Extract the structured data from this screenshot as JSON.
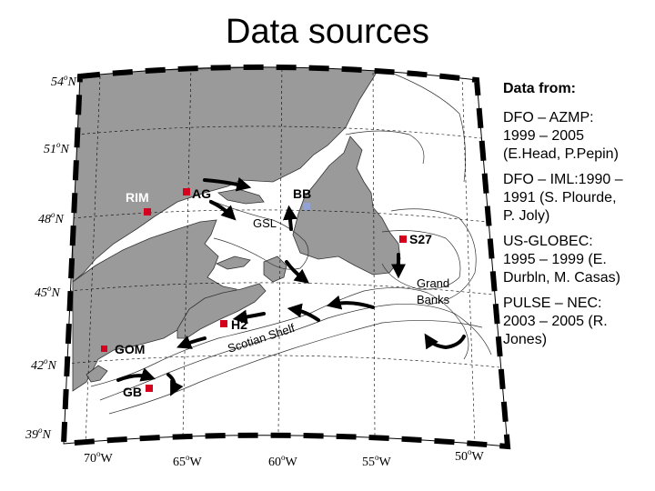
{
  "title": "Data sources",
  "colors": {
    "land": "#9a9a9a",
    "ocean": "#ffffff",
    "station": "#d4001e",
    "station_bb": "#8fa3d6",
    "frame": "#000000"
  },
  "map": {
    "lat_labels": [
      {
        "deg": "54",
        "suffix": "N"
      },
      {
        "deg": "51",
        "suffix": "N"
      },
      {
        "deg": "48",
        "suffix": "N"
      },
      {
        "deg": "45",
        "suffix": "N"
      },
      {
        "deg": "42",
        "suffix": "N"
      },
      {
        "deg": "39",
        "suffix": "N"
      }
    ],
    "lon_labels": [
      {
        "deg": "70",
        "suffix": "W"
      },
      {
        "deg": "65",
        "suffix": "W"
      },
      {
        "deg": "60",
        "suffix": "W"
      },
      {
        "deg": "55",
        "suffix": "W"
      },
      {
        "deg": "50",
        "suffix": "W"
      }
    ],
    "stations": [
      {
        "label": "RIM"
      },
      {
        "label": "AG"
      },
      {
        "label": "BB"
      },
      {
        "label": "S27"
      },
      {
        "label": "H2"
      },
      {
        "label": "GOM"
      },
      {
        "label": "GB"
      }
    ],
    "regions": {
      "gsl": "GSL",
      "grand_banks_1": "Grand",
      "grand_banks_2": "Banks",
      "scotian_shelf": "Scotian Shelf"
    }
  },
  "sidebar": {
    "header": "Data from:",
    "sources": [
      {
        "line1": "DFO – AZMP:",
        "line2": "1999 – 2005",
        "line3": "(E.Head, P.Pepin)"
      },
      {
        "line1": "DFO – IML:1990 –",
        "line2": "1991 (S. Plourde,",
        "line3": "P. Joly)"
      },
      {
        "line1": "US-GLOBEC:",
        "line2": "1995 – 1999 (E.",
        "line3": "Durbln, M. Casas)"
      },
      {
        "line1": "PULSE – NEC:",
        "line2": "2003 – 2005 (R.",
        "line3": "Jones)"
      }
    ]
  }
}
